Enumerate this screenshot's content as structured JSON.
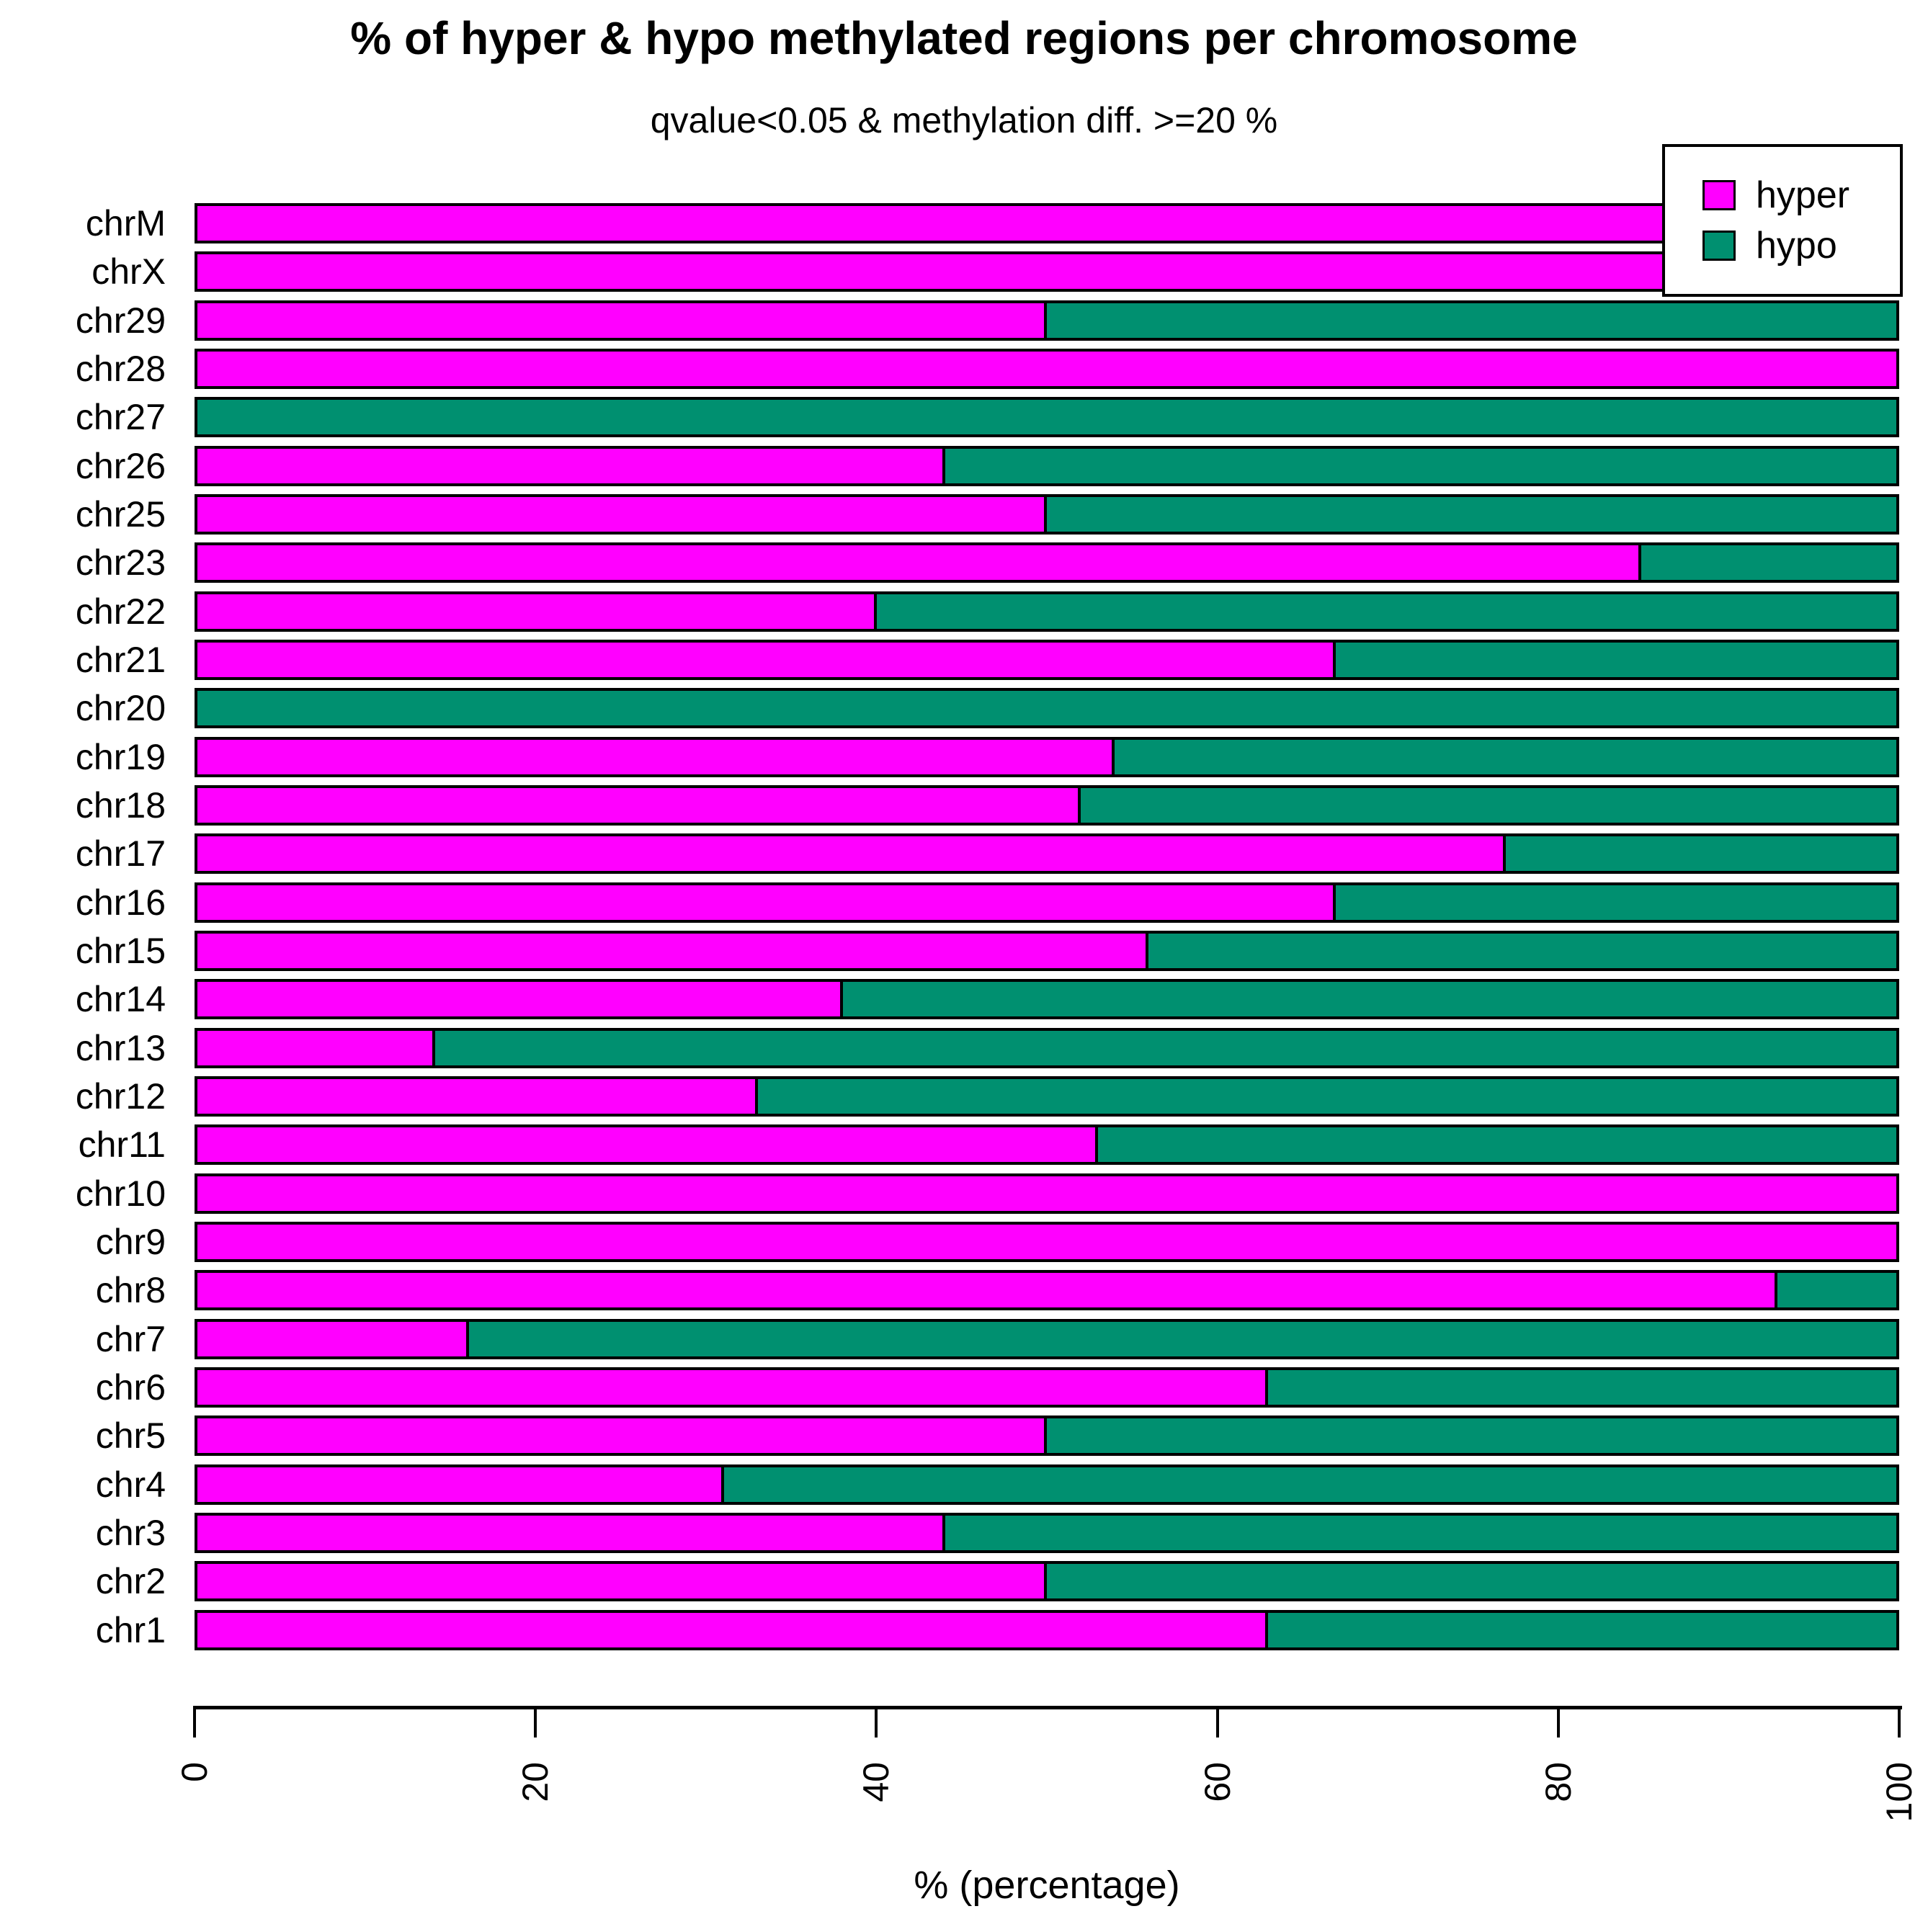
{
  "title": "% of hyper & hypo methylated regions per chromosome",
  "subtitle": "qvalue<0.05 & methylation diff. >=20 %",
  "legend": {
    "position": "top-right",
    "items": [
      {
        "label": "hyper",
        "color": "#FF00FF"
      },
      {
        "label": "hypo",
        "color": "#009070"
      }
    ]
  },
  "x_axis": {
    "label": "% (percentage)",
    "ticks": [
      0,
      20,
      40,
      60,
      80,
      100
    ]
  },
  "chart_data": {
    "type": "bar",
    "orientation": "horizontal",
    "stacked": true,
    "grid": false,
    "legend_position": "top-right",
    "title": "% of hyper & hypo methylated regions per chromosome",
    "subtitle": "qvalue<0.05 & methylation diff. >=20 %",
    "xlabel": "% (percentage)",
    "ylabel": "",
    "xlim": [
      0,
      100
    ],
    "x_ticks": [
      0,
      20,
      40,
      60,
      80,
      100
    ],
    "categories_top_to_bottom": [
      "chrM",
      "chrX",
      "chr29",
      "chr28",
      "chr27",
      "chr26",
      "chr25",
      "chr23",
      "chr22",
      "chr21",
      "chr20",
      "chr19",
      "chr18",
      "chr17",
      "chr16",
      "chr15",
      "chr14",
      "chr13",
      "chr12",
      "chr11",
      "chr10",
      "chr9",
      "chr8",
      "chr7",
      "chr6",
      "chr5",
      "chr4",
      "chr3",
      "chr2",
      "chr1"
    ],
    "series": [
      {
        "name": "hyper",
        "color": "#FF00FF",
        "values": [
          100,
          100,
          50,
          100,
          0,
          44,
          50,
          85,
          40,
          67,
          0,
          54,
          52,
          77,
          67,
          56,
          38,
          14,
          33,
          53,
          100,
          100,
          93,
          16,
          63,
          50,
          31,
          44,
          50,
          63
        ]
      },
      {
        "name": "hypo",
        "color": "#009070",
        "values": [
          0,
          0,
          50,
          0,
          100,
          56,
          50,
          15,
          60,
          33,
          100,
          46,
          48,
          23,
          33,
          44,
          62,
          86,
          67,
          47,
          0,
          0,
          7,
          84,
          37,
          50,
          69,
          56,
          50,
          37
        ]
      }
    ]
  }
}
